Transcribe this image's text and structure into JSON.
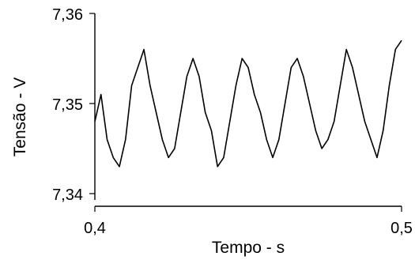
{
  "chart_data": {
    "type": "line",
    "title": "",
    "xlabel": "Tempo - s",
    "ylabel": "Tensão - V",
    "xlim": [
      0.4,
      0.5
    ],
    "ylim": [
      7.339,
      7.361
    ],
    "x_ticks": [
      0.4,
      0.5
    ],
    "x_tick_labels": [
      "0,4",
      "0,5"
    ],
    "y_ticks": [
      7.34,
      7.35,
      7.36
    ],
    "y_tick_labels": [
      "7,34",
      "7,35",
      "7,36"
    ],
    "grid": false,
    "legend": "none",
    "line_color": "#000000",
    "series": [
      {
        "x": [
          0.4,
          0.402,
          0.404,
          0.406,
          0.408,
          0.41,
          0.412,
          0.414,
          0.416,
          0.418,
          0.42,
          0.422,
          0.424,
          0.426,
          0.428,
          0.43,
          0.432,
          0.434,
          0.436,
          0.438,
          0.44,
          0.442,
          0.444,
          0.446,
          0.448,
          0.45,
          0.452,
          0.454,
          0.456,
          0.458,
          0.46,
          0.462,
          0.464,
          0.466,
          0.468,
          0.47,
          0.472,
          0.474,
          0.476,
          0.478,
          0.48,
          0.482,
          0.484,
          0.486,
          0.488,
          0.49,
          0.492,
          0.494,
          0.496,
          0.498,
          0.5
        ],
        "y": [
          7.348,
          7.351,
          7.346,
          7.344,
          7.343,
          7.346,
          7.352,
          7.354,
          7.356,
          7.352,
          7.349,
          7.346,
          7.344,
          7.345,
          7.349,
          7.353,
          7.355,
          7.353,
          7.349,
          7.347,
          7.343,
          7.344,
          7.348,
          7.352,
          7.355,
          7.354,
          7.351,
          7.349,
          7.346,
          7.344,
          7.346,
          7.35,
          7.354,
          7.355,
          7.353,
          7.35,
          7.347,
          7.345,
          7.346,
          7.348,
          7.352,
          7.356,
          7.354,
          7.351,
          7.348,
          7.346,
          7.344,
          7.347,
          7.352,
          7.356,
          7.357
        ]
      }
    ]
  }
}
